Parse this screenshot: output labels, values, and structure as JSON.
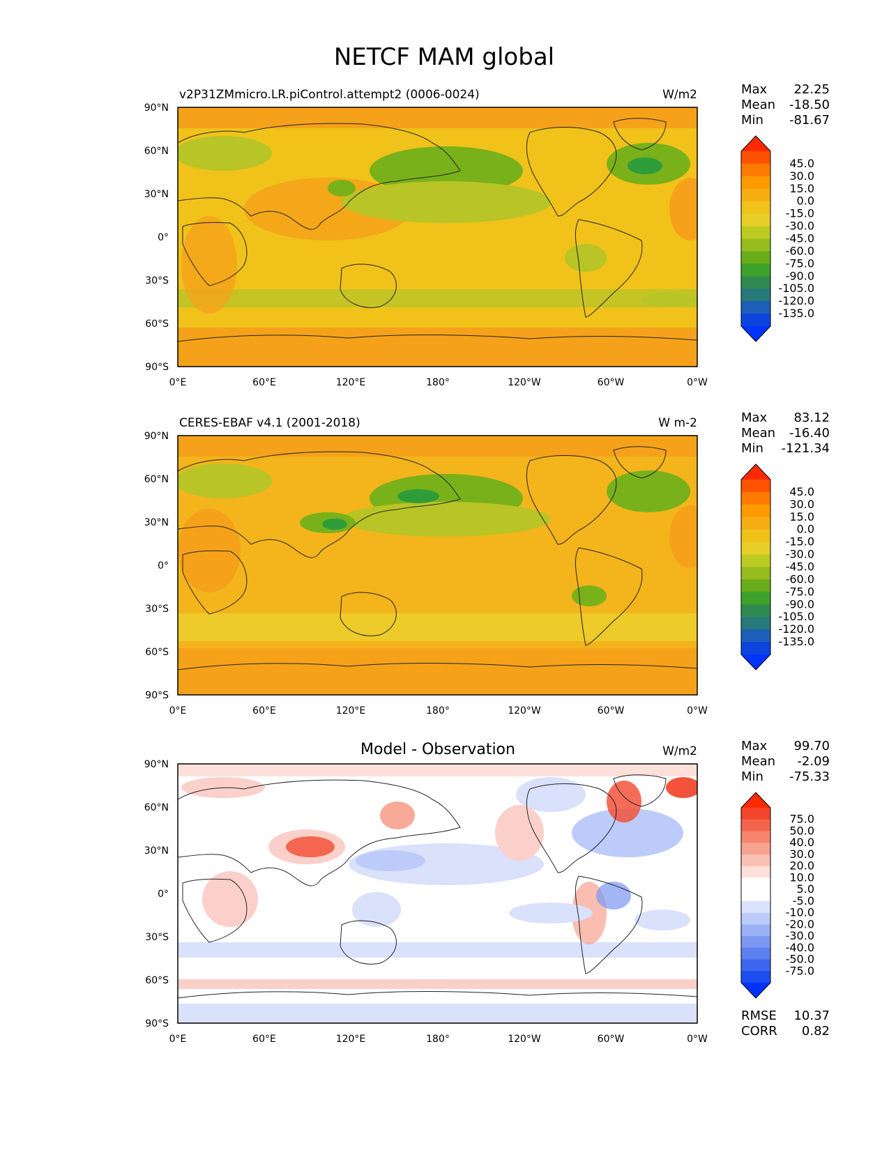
{
  "title": "NETCF MAM global",
  "lon_ticks": [
    "0°E",
    "60°E",
    "120°E",
    "180°",
    "120°W",
    "60°W",
    "0°W"
  ],
  "lat_ticks": [
    "90°N",
    "60°N",
    "30°N",
    "0°",
    "30°S",
    "60°S",
    "90°S"
  ],
  "colors": {
    "orange": "#f5a21a",
    "mid": "#eccb2a",
    "light_green": "#b9c426",
    "green": "#79b11a",
    "dark_green": "#2f9c3a",
    "diff_red": "#f3533c",
    "diff_light_red": "#fbd0cb",
    "diff_blue": "#7a97f2",
    "diff_light_blue": "#d9e1fb"
  },
  "panels": [
    {
      "left_title": "v2P31ZMmicro.LR.piControl.attempt2 (0006-0024)",
      "center_title": "",
      "units": "W/m2",
      "stats": {
        "max_label": "Max",
        "max": "22.25",
        "mean_label": "Mean",
        "mean": "-18.50",
        "min_label": "Min",
        "min": "-81.67"
      },
      "colorbar": {
        "labels": [
          "45.0",
          "30.0",
          "15.0",
          "0.0",
          "-15.0",
          "-30.0",
          "-45.0",
          "-60.0",
          "-75.0",
          "-90.0",
          "-105.0",
          "-120.0",
          "-135.0"
        ],
        "colors": [
          "#ff2a00",
          "#ff5200",
          "#ff7a00",
          "#ff9a00",
          "#f5ad12",
          "#f0c21a",
          "#e8cf28",
          "#bccb22",
          "#96bd1d",
          "#6aad1a",
          "#3ea22a",
          "#2f8a52",
          "#267a7a",
          "#1d5fb8",
          "#0c44de",
          "#0033ff"
        ]
      }
    },
    {
      "left_title": "CERES-EBAF v4.1 (2001-2018)",
      "center_title": "",
      "units": "W m-2",
      "stats": {
        "max_label": "Max",
        "max": "83.12",
        "mean_label": "Mean",
        "mean": "-16.40",
        "min_label": "Min",
        "min": "-121.34"
      },
      "colorbar": {
        "labels": [
          "45.0",
          "30.0",
          "15.0",
          "0.0",
          "-15.0",
          "-30.0",
          "-45.0",
          "-60.0",
          "-75.0",
          "-90.0",
          "-105.0",
          "-120.0",
          "-135.0"
        ],
        "colors": [
          "#ff2a00",
          "#ff5200",
          "#ff7a00",
          "#ff9a00",
          "#f5ad12",
          "#f0c21a",
          "#e8cf28",
          "#bccb22",
          "#96bd1d",
          "#6aad1a",
          "#3ea22a",
          "#2f8a52",
          "#267a7a",
          "#1d5fb8",
          "#0c44de",
          "#0033ff"
        ]
      }
    },
    {
      "left_title": "",
      "center_title": "Model - Observation",
      "units": "W/m2",
      "stats": {
        "max_label": "Max",
        "max": "99.70",
        "mean_label": "Mean",
        "mean": "-2.09",
        "min_label": "Min",
        "min": "-75.33"
      },
      "extra": {
        "rmse_label": "RMSE",
        "rmse": "10.37",
        "corr_label": "CORR",
        "corr": "0.82"
      },
      "colorbar": {
        "labels": [
          "75.0",
          "50.0",
          "40.0",
          "30.0",
          "20.0",
          "10.0",
          "5.0",
          "-5.0",
          "-10.0",
          "-20.0",
          "-30.0",
          "-40.0",
          "-50.0",
          "-75.0"
        ],
        "colors": [
          "#ff2a00",
          "#f2452c",
          "#f4644c",
          "#f6846c",
          "#f8a290",
          "#fbc0b4",
          "#fde0da",
          "#ffffff",
          "#ffffff",
          "#dbe3fc",
          "#bccbf9",
          "#9cb2f6",
          "#7c98f3",
          "#5c80f0",
          "#3c66ee",
          "#1c4df0",
          "#0033ff"
        ]
      }
    }
  ]
}
